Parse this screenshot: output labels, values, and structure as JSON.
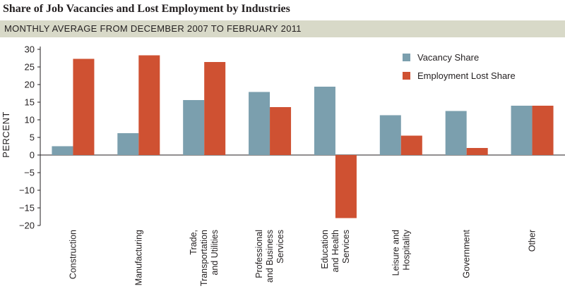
{
  "chart_data": {
    "type": "bar",
    "title": "Share of Job Vacancies and Lost Employment by Industries",
    "subtitle": "MONTHLY AVERAGE FROM DECEMBER 2007 TO FEBRUARY 2011",
    "xlabel": "",
    "ylabel": "PERCENT",
    "ylim": [
      -20,
      30
    ],
    "yticks": [
      30,
      25,
      20,
      15,
      10,
      5,
      0,
      -5,
      -10,
      -15,
      -20
    ],
    "ytick_labels": [
      "30",
      "25",
      "20",
      "15",
      "10",
      "5",
      "0",
      "−5",
      "−10",
      "−15",
      "−20"
    ],
    "categories": [
      [
        "Construction"
      ],
      [
        "Manufacturing"
      ],
      [
        "Trade,",
        "Transportation",
        "and Utilities"
      ],
      [
        "Professional",
        "and Business",
        "Services"
      ],
      [
        "Education",
        "and Health",
        "Services"
      ],
      [
        "Leisure and",
        "Hospitality"
      ],
      [
        "Government"
      ],
      [
        "Other"
      ]
    ],
    "series": [
      {
        "name": "Vacancy Share",
        "color": "#7b9fae",
        "values": [
          2.5,
          6.2,
          15.6,
          17.9,
          19.4,
          11.3,
          12.5,
          14.0
        ]
      },
      {
        "name": "Employment Lost Share",
        "color": "#cf5132",
        "values": [
          27.3,
          28.3,
          26.4,
          13.6,
          -17.9,
          5.5,
          2.0,
          14.0
        ]
      }
    ],
    "grid": false,
    "legend_position": "top-right"
  }
}
